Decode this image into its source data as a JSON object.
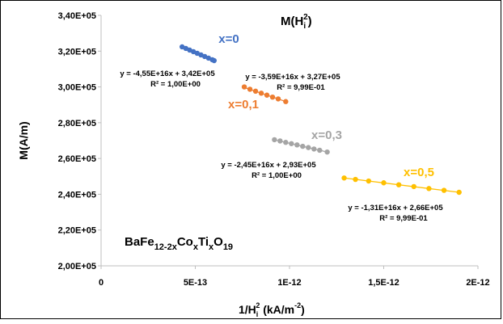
{
  "chart_data": {
    "type": "scatter",
    "title": "M(H_i^2)",
    "title_parts": [
      "M(H",
      "i",
      "2",
      ")"
    ],
    "xlabel": "1/H_i^2 (kA/m^-2)",
    "xlabel_parts": [
      "1/H",
      "i",
      "2",
      " (kA/m",
      "-2",
      ")"
    ],
    "ylabel": "M(A/m)",
    "compound": "BaFe12-2xCoxTixO19",
    "compound_parts": [
      {
        "t": "BaFe",
        "sub": false
      },
      {
        "t": "12-2x",
        "sub": true
      },
      {
        "t": "Co",
        "sub": false
      },
      {
        "t": "x",
        "sub": true
      },
      {
        "t": "Ti",
        "sub": false
      },
      {
        "t": "x",
        "sub": true
      },
      {
        "t": "O",
        "sub": false
      },
      {
        "t": "19",
        "sub": true
      }
    ],
    "xlim": [
      0,
      2e-12
    ],
    "ylim": [
      200000,
      340000
    ],
    "x_ticks": [
      0,
      5e-13,
      1e-12,
      1.5e-12,
      2e-12
    ],
    "x_tick_labels": [
      "0",
      "5E-13",
      "1E-12",
      "1,5E-12",
      "2E-12"
    ],
    "y_ticks": [
      200000,
      220000,
      240000,
      260000,
      280000,
      300000,
      320000,
      340000
    ],
    "y_tick_labels": [
      "2,00E+05",
      "2,20E+05",
      "2,40E+05",
      "2,60E+05",
      "2,80E+05",
      "3,00E+05",
      "3,20E+05",
      "3,40E+05"
    ],
    "grid": false,
    "legend": "none",
    "series": [
      {
        "name": "x=0",
        "color": "#4472C4",
        "trendline": {
          "slope": -4.55e+16,
          "intercept": 342000
        },
        "equation": "y = -4,55E+16x + 3,42E+05",
        "r2": "R² = 1,00E+00",
        "x": [
          4.3e-13,
          4.5e-13,
          4.7e-13,
          4.9e-13,
          5.1e-13,
          5.3e-13,
          5.5e-13,
          5.7e-13,
          5.9e-13,
          6e-13
        ],
        "y": [
          322400,
          321500,
          320600,
          319700,
          318800,
          317900,
          317000,
          316100,
          315200,
          314700
        ]
      },
      {
        "name": "x=0,1",
        "color": "#ED7D31",
        "trendline": {
          "slope": -3.59e+16,
          "intercept": 327000
        },
        "equation": "y = -3,59E+16x + 3,27E+05",
        "r2": "R² = 9,99E-01",
        "x": [
          7.6e-13,
          7.9e-13,
          8.2e-13,
          8.5e-13,
          8.8e-13,
          9.1e-13,
          9.4e-13,
          9.8e-13
        ],
        "y": [
          300000,
          298700,
          297600,
          296500,
          295400,
          294300,
          293300,
          291800
        ]
      },
      {
        "name": "x=0,3",
        "color": "#A5A5A5",
        "trendline": {
          "slope": -2.45e+16,
          "intercept": 293000
        },
        "equation": "y = -2,45E+16x + 2,93E+05",
        "r2": "R² = 1,00E+00",
        "x": [
          9.2e-13,
          9.5e-13,
          9.8e-13,
          1.01e-12,
          1.04e-12,
          1.07e-12,
          1.1e-12,
          1.13e-12,
          1.16e-12,
          1.2e-12
        ],
        "y": [
          270500,
          269800,
          269000,
          268300,
          267600,
          266800,
          266100,
          265300,
          264600,
          263600
        ]
      },
      {
        "name": "x=0,5",
        "color": "#FFC000",
        "trendline": {
          "slope": -1.31e+16,
          "intercept": 266000
        },
        "equation": "y = -1,31E+16x + 2,66E+05",
        "r2": "R² = 9,99E-01",
        "x": [
          1.29e-12,
          1.35e-12,
          1.42e-12,
          1.5e-12,
          1.58e-12,
          1.66e-12,
          1.74e-12,
          1.82e-12,
          1.9e-12
        ],
        "y": [
          249100,
          248300,
          247400,
          246400,
          245300,
          244300,
          243200,
          242200,
          241100
        ]
      }
    ]
  }
}
